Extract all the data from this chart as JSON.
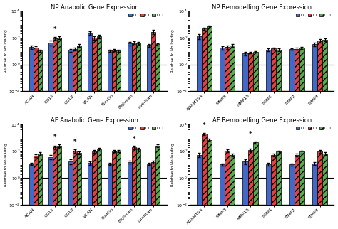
{
  "panels": [
    {
      "title": "NP Anabolic Gene Expression",
      "categories": [
        "ACAN",
        "COL1",
        "COL2",
        "VCAN",
        "Elastin",
        "Biglycan",
        "Lumican"
      ],
      "cc": [
        20,
        45,
        12,
        220,
        11,
        38,
        28
      ],
      "ct": [
        18,
        90,
        15,
        95,
        12,
        42,
        280
      ],
      "cct": [
        11,
        100,
        26,
        130,
        11,
        38,
        32
      ],
      "cc_err": [
        5,
        18,
        3,
        65,
        2,
        12,
        7
      ],
      "ct_err": [
        5,
        22,
        4,
        28,
        2,
        10,
        85
      ],
      "cct_err": [
        2,
        25,
        6,
        38,
        2,
        8,
        7
      ],
      "star_idx": [
        1
      ],
      "ylim": [
        0.01,
        10000.0
      ],
      "yticks": [
        0.01,
        1,
        100,
        10000
      ]
    },
    {
      "title": "NP Remodelling Gene Expression",
      "categories": [
        "ADAMTS4",
        "MMP3",
        "MMP13",
        "TIMP1",
        "TIMP2",
        "TIMP3"
      ],
      "cc": [
        130,
        18,
        7,
        13,
        14,
        32
      ],
      "ct": [
        480,
        20,
        8,
        16,
        15,
        58
      ],
      "cct": [
        700,
        26,
        9,
        13,
        17,
        68
      ],
      "cc_err": [
        55,
        5,
        2,
        3,
        2,
        10
      ],
      "ct_err": [
        90,
        5,
        1,
        3,
        2,
        16
      ],
      "cct_err": [
        120,
        6,
        1,
        3,
        3,
        16
      ],
      "star_idx": [],
      "ylim": [
        0.01,
        10000.0
      ],
      "yticks": [
        0.01,
        1,
        100,
        10000
      ]
    },
    {
      "title": "AF Anabolic Gene Expression",
      "categories": [
        "ACAN",
        "COL1",
        "COL2",
        "VCAN",
        "Elastin",
        "Biglycan",
        "Lumican"
      ],
      "cc": [
        11,
        38,
        18,
        13,
        11,
        16,
        11
      ],
      "ct": [
        48,
        190,
        110,
        95,
        105,
        190,
        16
      ],
      "cct": [
        65,
        260,
        75,
        140,
        105,
        145,
        260
      ],
      "cc_err": [
        2,
        14,
        7,
        4,
        2,
        4,
        2
      ],
      "ct_err": [
        11,
        55,
        32,
        22,
        22,
        50,
        4
      ],
      "cct_err": [
        16,
        65,
        18,
        38,
        22,
        38,
        65
      ],
      "star_idx": [
        1,
        2,
        5
      ],
      "ylim": [
        0.01,
        10000.0
      ],
      "yticks": [
        0.01,
        1,
        100,
        10000
      ]
    },
    {
      "title": "AF Remodelling Gene Expression",
      "categories": [
        "ADAMTS4",
        "MMP3",
        "MMP13",
        "TIMP1",
        "TIMP2",
        "TIMP3"
      ],
      "cc": [
        55,
        10,
        18,
        11,
        10,
        12
      ],
      "ct": [
        2000,
        110,
        120,
        55,
        55,
        100
      ],
      "cct": [
        700,
        55,
        450,
        90,
        90,
        65
      ],
      "cc_err": [
        20,
        2,
        8,
        3,
        2,
        3
      ],
      "ct_err": [
        400,
        30,
        30,
        15,
        12,
        25
      ],
      "cct_err": [
        130,
        12,
        90,
        22,
        20,
        15
      ],
      "star_idx": [
        0,
        2
      ],
      "ylim": [
        0.01,
        10000.0
      ],
      "yticks": [
        0.01,
        1,
        100,
        10000
      ]
    }
  ],
  "cc_color": "#4169c8",
  "ct_color": "#e84040",
  "cct_color": "#5aaa50",
  "bar_width": 0.22,
  "ylabel": "Relative to No loading",
  "hatch": "////"
}
